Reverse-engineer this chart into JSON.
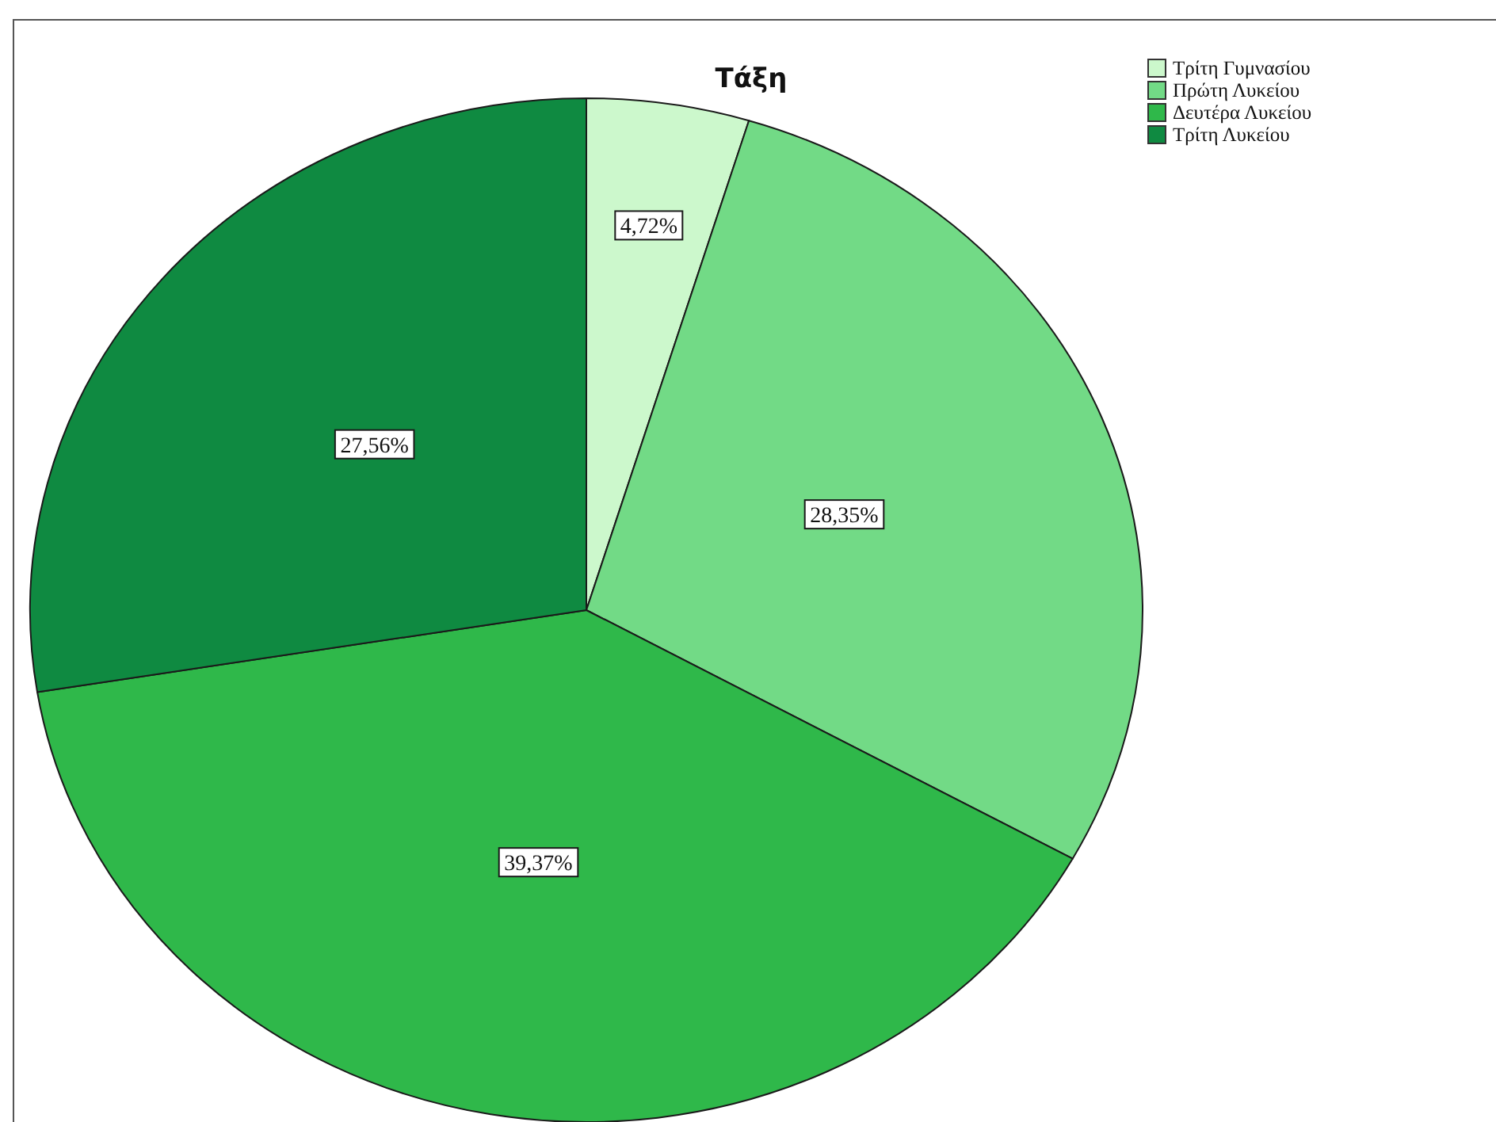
{
  "chart_data": {
    "type": "pie",
    "title": "Τάξη",
    "categories": [
      "Τρίτη Γυμνασίου",
      "Πρώτη Λυκείου",
      "Δευτέρα Λυκείου",
      "Τρίτη Λυκείου"
    ],
    "values": [
      4.72,
      28.35,
      39.37,
      27.56
    ],
    "colors": [
      "#ccf8cc",
      "#72da86",
      "#2fb84a",
      "#0f8a41"
    ],
    "value_labels": [
      "4,72%",
      "28,35%",
      "39,37%",
      "27,56%"
    ],
    "legend": "top right"
  }
}
